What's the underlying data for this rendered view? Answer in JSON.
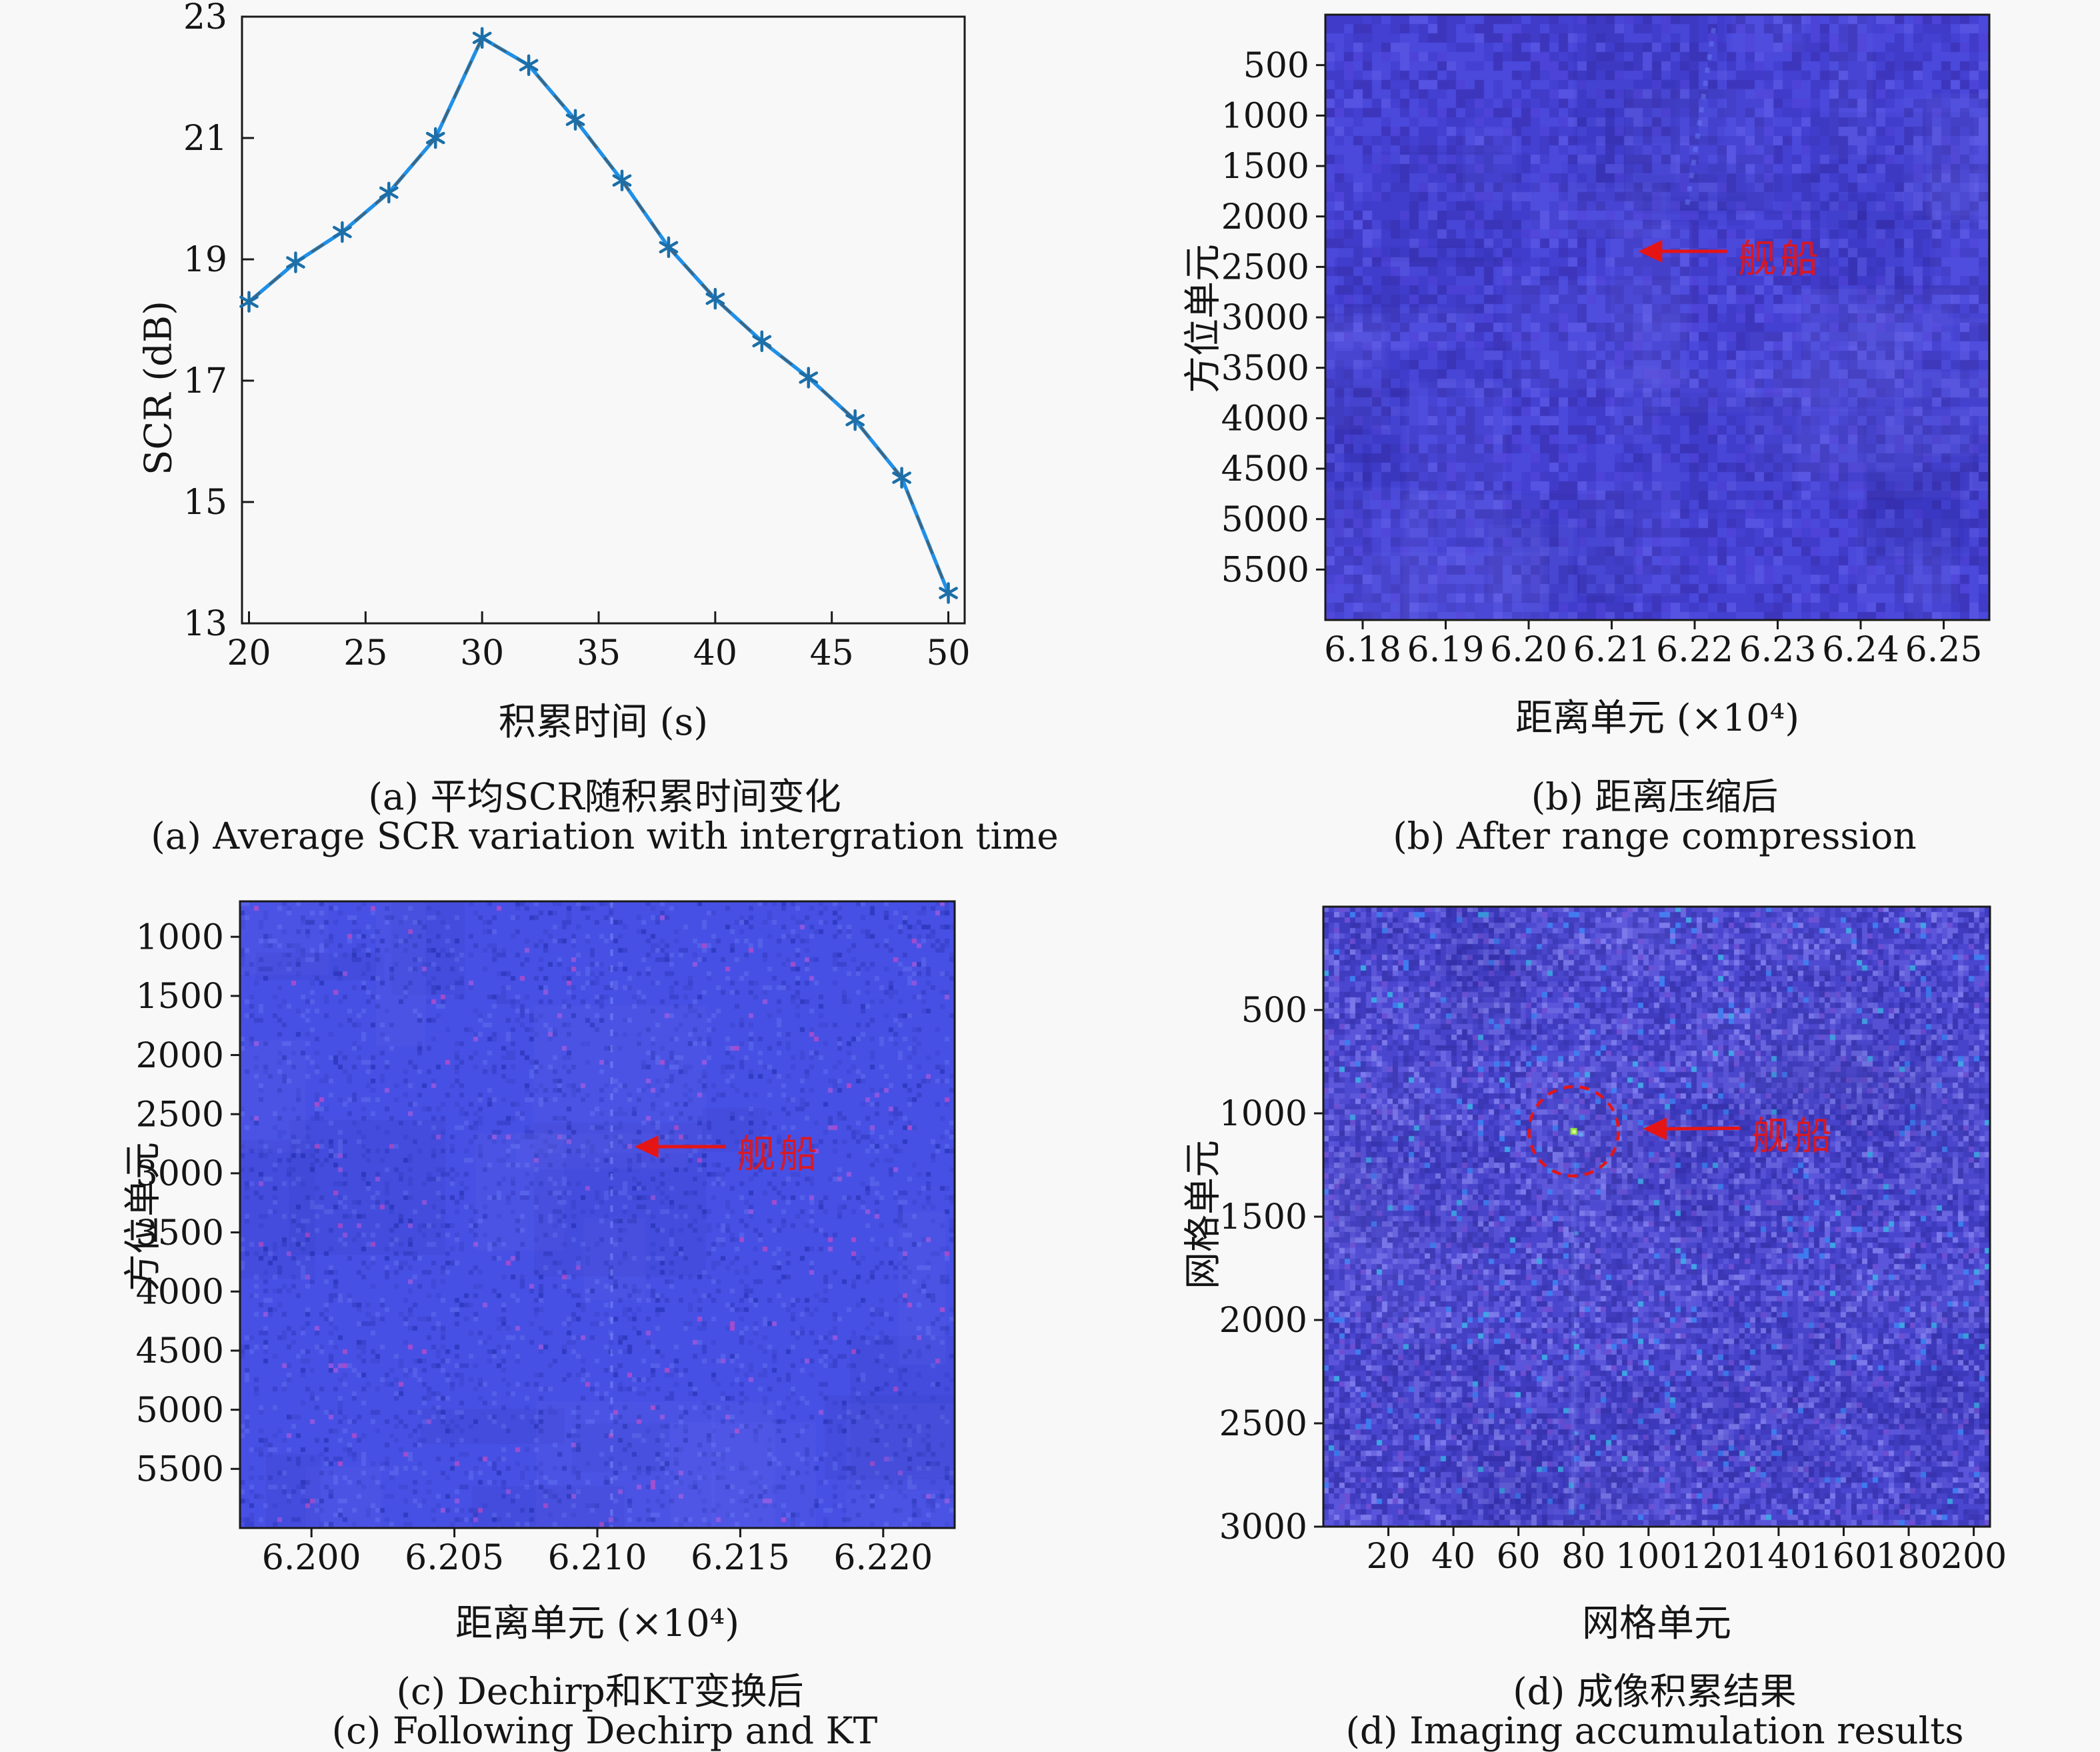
{
  "figure": {
    "background": "#f8f8f8",
    "border_color": "#1a1a1a",
    "tick_color": "#151515",
    "annotation_color": "#e51515"
  },
  "captions": {
    "a_zh": "(a) 平均SCR随积累时间变化",
    "a_en": "(a) Average SCR variation with intergration time",
    "b_zh": "(b) 距离压缩后",
    "b_en": "(b) After range compression",
    "c_zh": "(c) Dechirp和KT变换后",
    "c_en": "(c) Following Dechirp and KT",
    "d_zh": "(d) 成像积累结果",
    "d_en": "(d) Imaging accumulation results"
  },
  "chart_data": [
    {
      "id": "a",
      "type": "line",
      "title": "(a) Average SCR variation with intergration time",
      "xlabel": "积累时间 (s)",
      "ylabel": "SCR (dB)",
      "x": [
        20,
        22,
        24,
        26,
        28,
        30,
        32,
        34,
        36,
        38,
        40,
        42,
        44,
        46,
        48,
        50
      ],
      "y": [
        18.3,
        18.95,
        19.45,
        20.1,
        21.0,
        22.65,
        22.2,
        21.3,
        20.3,
        19.2,
        18.35,
        17.65,
        17.05,
        16.35,
        15.4,
        13.5
      ],
      "xticks": [
        20,
        25,
        30,
        35,
        40,
        45,
        50
      ],
      "xtick_labels": [
        "20",
        "25",
        "30",
        "35",
        "40",
        "45",
        "50"
      ],
      "yticks": [
        13,
        15,
        17,
        19,
        21,
        23
      ],
      "ytick_labels": [
        "13",
        "15",
        "17",
        "19",
        "21",
        "23"
      ],
      "xlim": [
        19.7,
        50.7
      ],
      "ylim": [
        13,
        23
      ],
      "grid": false,
      "legend": null,
      "line_color": "#2090e8",
      "line_overlay_color": "#46606e",
      "marker": "asterisk",
      "marker_color": "#1c6fa8"
    },
    {
      "id": "b",
      "type": "heatmap",
      "title": "(b) After range compression",
      "xlabel": "距离单元 (×10⁴)",
      "ylabel": "方位单元",
      "xticks": [
        6.18,
        6.19,
        6.2,
        6.21,
        6.22,
        6.23,
        6.24,
        6.25
      ],
      "xtick_labels": [
        "6.18",
        "6.19",
        "6.20",
        "6.21",
        "6.22",
        "6.23",
        "6.24",
        "6.25"
      ],
      "yticks": [
        500,
        1000,
        1500,
        2000,
        2500,
        3000,
        3500,
        4000,
        4500,
        5000,
        5500
      ],
      "ytick_labels": [
        "500",
        "1000",
        "1500",
        "2000",
        "2500",
        "3000",
        "3500",
        "4000",
        "4500",
        "5000",
        "5500"
      ],
      "xlim": [
        6.1755,
        6.2555
      ],
      "ylim": [
        0,
        6000
      ],
      "annotation": {
        "text": "舰船",
        "color": "#e51515",
        "tip": [
          6.2132,
          2346
        ],
        "tail": [
          6.2239,
          2346
        ]
      },
      "noise": {
        "seed": 11,
        "cell": 14,
        "base": "#4340d2",
        "palette": [
          [
            "#4a49dc",
            0.25
          ],
          [
            "#3d36bd",
            0.17
          ],
          [
            "#5653e2",
            0.09
          ],
          [
            "#403bc8",
            0.2
          ],
          [
            "#4d43d8",
            0.08
          ]
        ],
        "blotches": 55,
        "diagonal_streak": true
      }
    },
    {
      "id": "c",
      "type": "heatmap",
      "title": "(c) Following Dechirp and KT",
      "xlabel": "距离单元 (×10⁴)",
      "ylabel": "方位单元",
      "xticks": [
        6.2,
        6.205,
        6.21,
        6.215,
        6.22
      ],
      "xtick_labels": [
        "6.200",
        "6.205",
        "6.210",
        "6.215",
        "6.220"
      ],
      "yticks": [
        1000,
        1500,
        2000,
        2500,
        3000,
        3500,
        4000,
        4500,
        5000,
        5500
      ],
      "ytick_labels": [
        "1000",
        "1500",
        "2000",
        "2500",
        "3000",
        "3500",
        "4000",
        "4500",
        "5000",
        "5500"
      ],
      "xlim": [
        6.1975,
        6.2225
      ],
      "ylim": [
        700,
        6000
      ],
      "annotation": {
        "text": "舰船",
        "color": "#e51515",
        "tip": [
          6.2113,
          2775
        ],
        "tail": [
          6.2145,
          2775
        ]
      },
      "noise": {
        "seed": 23,
        "cell": 7,
        "base": "#4750e4",
        "palette": [
          [
            "#3a43cf",
            0.05
          ],
          [
            "#303bc4",
            0.018
          ],
          [
            "#5560ea",
            0.05
          ],
          [
            "#8c57e0",
            0.006
          ],
          [
            "#a14ccf",
            0.004
          ],
          [
            "#4049d8",
            0.06
          ]
        ],
        "blotches": 25,
        "streak_x": 6.2105
      }
    },
    {
      "id": "d",
      "type": "heatmap",
      "title": "(d) Imaging accumulation results",
      "xlabel": "网格单元",
      "ylabel": "网格单元",
      "xticks": [
        20,
        40,
        60,
        80,
        100,
        120,
        140,
        160,
        180,
        200
      ],
      "xtick_labels": [
        "20",
        "40",
        "60",
        "80",
        "100",
        "120",
        "140",
        "160",
        "180",
        "200"
      ],
      "yticks": [
        500,
        1000,
        1500,
        2000,
        2500,
        3000
      ],
      "ytick_labels": [
        "500",
        "1000",
        "1500",
        "2000",
        "2500",
        "3000"
      ],
      "xlim": [
        0,
        205
      ],
      "ylim": [
        0,
        3000
      ],
      "annotation": {
        "text": "舰船",
        "color": "#e51515",
        "tip": [
          98.2,
          1075
        ],
        "tail": [
          128.3,
          1072
        ],
        "circle": {
          "center": [
            77,
            1087
          ],
          "radius_px": 67,
          "dot_color": "#8ee83e"
        }
      },
      "noise": {
        "seed": 37,
        "cell": 8,
        "base": "#4a46cf",
        "palette": [
          [
            "#5a55da",
            0.22
          ],
          [
            "#403cc0",
            0.22
          ],
          [
            "#6a66e2",
            0.1
          ],
          [
            "#3a36b4",
            0.12
          ],
          [
            "#7b78ea",
            0.05
          ],
          [
            "#3f7bf0",
            0.02
          ],
          [
            "#3ea4e4",
            0.008
          ],
          [
            "#6c4fd4",
            0.03
          ]
        ],
        "blotches": 45,
        "streak_below_circle": true
      }
    }
  ]
}
